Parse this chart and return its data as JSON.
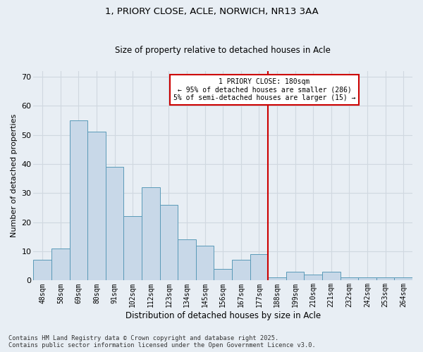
{
  "title1": "1, PRIORY CLOSE, ACLE, NORWICH, NR13 3AA",
  "title2": "Size of property relative to detached houses in Acle",
  "xlabel": "Distribution of detached houses by size in Acle",
  "ylabel": "Number of detached properties",
  "categories": [
    "48sqm",
    "58sqm",
    "69sqm",
    "80sqm",
    "91sqm",
    "102sqm",
    "112sqm",
    "123sqm",
    "134sqm",
    "145sqm",
    "156sqm",
    "167sqm",
    "177sqm",
    "188sqm",
    "199sqm",
    "210sqm",
    "221sqm",
    "232sqm",
    "242sqm",
    "253sqm",
    "264sqm"
  ],
  "values": [
    7,
    11,
    55,
    51,
    39,
    22,
    32,
    26,
    14,
    12,
    4,
    7,
    9,
    1,
    3,
    2,
    3,
    1,
    1,
    1,
    1
  ],
  "bar_color": "#c8d8e8",
  "bar_edgecolor": "#5a9ab8",
  "redline_index": 12,
  "annotation_line1": "1 PRIORY CLOSE: 180sqm",
  "annotation_line2": "← 95% of detached houses are smaller (286)",
  "annotation_line3": "5% of semi-detached houses are larger (15) →",
  "annotation_box_color": "#ffffff",
  "annotation_box_edgecolor": "#cc0000",
  "redline_color": "#cc0000",
  "ylim": [
    0,
    72
  ],
  "yticks": [
    0,
    10,
    20,
    30,
    40,
    50,
    60,
    70
  ],
  "grid_color": "#d0d8e0",
  "bg_color": "#e8eef4",
  "footer": "Contains HM Land Registry data © Crown copyright and database right 2025.\nContains public sector information licensed under the Open Government Licence v3.0."
}
